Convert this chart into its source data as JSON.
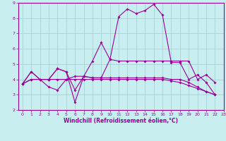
{
  "xlabel": "Windchill (Refroidissement éolien,°C)",
  "background_color": "#c8eef0",
  "grid_color": "#a0ccd0",
  "line_color": "#990099",
  "xlim": [
    -0.5,
    23
  ],
  "ylim": [
    2,
    9
  ],
  "xticks": [
    0,
    1,
    2,
    3,
    4,
    5,
    6,
    7,
    8,
    9,
    10,
    11,
    12,
    13,
    14,
    15,
    16,
    17,
    18,
    19,
    20,
    21,
    22,
    23
  ],
  "yticks": [
    2,
    3,
    4,
    5,
    6,
    7,
    8,
    9
  ],
  "series": [
    [
      3.7,
      4.5,
      4.0,
      4.0,
      4.7,
      4.5,
      3.3,
      4.2,
      4.1,
      4.1,
      5.3,
      8.1,
      8.6,
      8.3,
      8.5,
      8.9,
      8.2,
      5.1,
      5.1,
      4.0,
      4.3,
      3.8,
      3.0
    ],
    [
      3.7,
      4.5,
      4.0,
      4.0,
      4.7,
      4.5,
      2.5,
      4.2,
      5.2,
      6.4,
      5.3,
      5.2,
      5.2,
      5.2,
      5.2,
      5.2,
      5.2,
      5.2,
      5.2,
      5.2,
      4.0,
      4.3,
      3.8
    ],
    [
      3.7,
      4.0,
      4.0,
      3.5,
      3.3,
      4.0,
      4.2,
      4.2,
      4.1,
      4.1,
      4.1,
      4.1,
      4.1,
      4.1,
      4.1,
      4.1,
      4.1,
      4.0,
      4.0,
      3.8,
      3.5,
      3.2,
      3.0
    ],
    [
      3.7,
      4.0,
      4.0,
      4.0,
      4.0,
      4.0,
      4.0,
      4.0,
      4.0,
      4.0,
      4.0,
      4.0,
      4.0,
      4.0,
      4.0,
      4.0,
      4.0,
      3.9,
      3.8,
      3.6,
      3.4,
      3.2,
      3.0
    ]
  ]
}
